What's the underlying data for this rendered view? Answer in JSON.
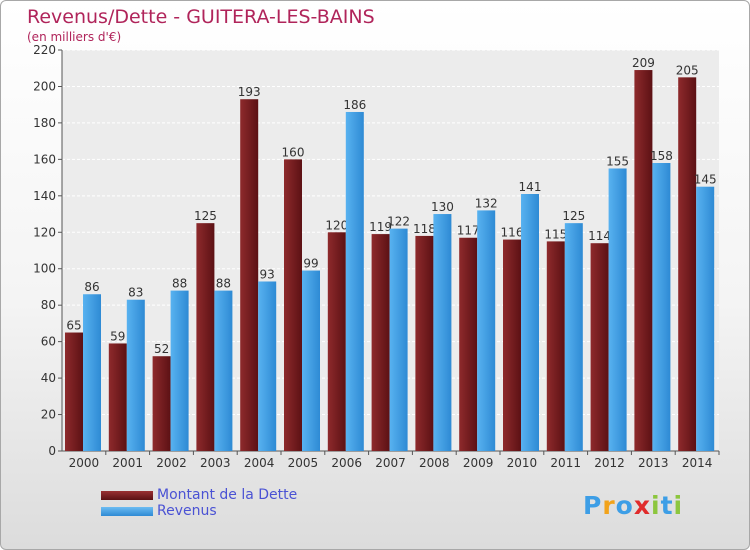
{
  "chart_data": {
    "type": "bar",
    "title": "Revenus/Dette - GUITERA-LES-BAINS",
    "subtitle": "(en milliers d'€)",
    "categories": [
      "2000",
      "2001",
      "2002",
      "2003",
      "2004",
      "2005",
      "2006",
      "2007",
      "2008",
      "2009",
      "2010",
      "2011",
      "2012",
      "2013",
      "2014"
    ],
    "series": [
      {
        "name": "Montant de la Dette",
        "color": "#7a1f22",
        "values": [
          65,
          59,
          52,
          125,
          193,
          160,
          120,
          119,
          118,
          117,
          116,
          115,
          114,
          209,
          205
        ]
      },
      {
        "name": "Revenus",
        "color": "#3d9ee6",
        "values": [
          86,
          83,
          88,
          88,
          93,
          99,
          186,
          122,
          130,
          132,
          141,
          125,
          155,
          158,
          145
        ]
      }
    ],
    "ylim": [
      0,
      220
    ],
    "yticks": [
      0,
      20,
      40,
      60,
      80,
      100,
      120,
      140,
      160,
      180,
      200,
      220
    ],
    "grid": true,
    "legend": "bottom-left"
  },
  "logo": {
    "letters": [
      {
        "char": "P",
        "color": "#3d9ee6"
      },
      {
        "char": "r",
        "color": "#f2a31b"
      },
      {
        "char": "o",
        "color": "#3d9ee6"
      },
      {
        "char": "x",
        "color": "#e02b2b"
      },
      {
        "char": "i",
        "color": "#8cc63e"
      },
      {
        "char": "t",
        "color": "#3d9ee6"
      },
      {
        "char": "i",
        "color": "#8cc63e"
      }
    ]
  }
}
